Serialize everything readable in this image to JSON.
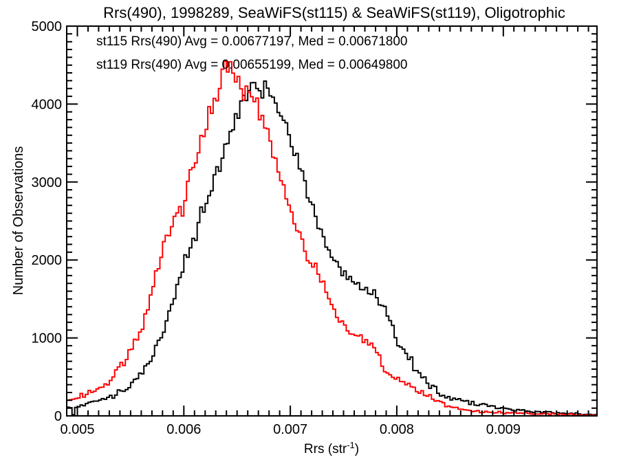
{
  "figure": {
    "background": "#ffffff"
  },
  "chart_data": {
    "type": "line",
    "style": "histogram-steps",
    "title": "Rrs(490), 1998289, SeaWiFS(st115) & SeaWiFS(st119), Oligotrophic",
    "ylabel": "Number of Observations",
    "xlabel": "Rrs (str⁻¹)",
    "xlabel_parts": {
      "main": "Rrs (str",
      "sup": "-1",
      "close": ")"
    },
    "xlim": [
      0.0049,
      0.00988
    ],
    "ylim": [
      0,
      5000
    ],
    "x_ticks_major": [
      0.005,
      0.006,
      0.007,
      0.008,
      0.009
    ],
    "x_tick_labels": [
      "0.005",
      "0.006",
      "0.007",
      "0.008",
      "0.009"
    ],
    "x_minor_step": 0.0001,
    "y_ticks_major": [
      0,
      1000,
      2000,
      3000,
      4000,
      5000
    ],
    "y_tick_labels": [
      "0",
      "1000",
      "2000",
      "3000",
      "4000",
      "5000"
    ],
    "y_minor_step": 100,
    "grid": false,
    "legend_position": "top-left-inside",
    "x_start": 0.0049,
    "x_step": 0.0001,
    "series": [
      {
        "name": "st115",
        "color": "#000000",
        "legend": "st115 Rrs(490) Avg = 0.00677197, Med = 0.00671800",
        "avg": 0.00677197,
        "med": 0.006718,
        "values": [
          100,
          125,
          155,
          200,
          245,
          310,
          400,
          530,
          760,
          1050,
          1500,
          1950,
          2300,
          2700,
          3100,
          3500,
          3900,
          4150,
          4250,
          4150,
          3900,
          3550,
          3100,
          2700,
          2300,
          2050,
          1850,
          1700,
          1620,
          1550,
          1300,
          1000,
          780,
          580,
          420,
          300,
          230,
          190,
          180,
          155,
          120,
          85,
          72,
          62,
          52,
          45,
          38,
          33,
          27,
          22,
          18
        ],
        "fine_structure": [
          {
            "x": 0.00496,
            "value": 15
          }
        ]
      },
      {
        "name": "st119",
        "color": "#ff0000",
        "legend": "st119 Rrs(490) Avg = 0.00655199, Med = 0.00649800",
        "avg": 0.00655199,
        "med": 0.006498,
        "values": [
          190,
          230,
          285,
          350,
          440,
          620,
          830,
          1150,
          1600,
          2100,
          2450,
          2800,
          3250,
          3650,
          4100,
          4400,
          4300,
          4200,
          4000,
          3600,
          3150,
          2650,
          2250,
          1950,
          1650,
          1400,
          1180,
          1050,
          980,
          800,
          560,
          470,
          410,
          330,
          240,
          170,
          125,
          90,
          68,
          58,
          50,
          44,
          38,
          32,
          27,
          24,
          20,
          17,
          13,
          10,
          8
        ],
        "fine_structure": [
          {
            "x": 0.00639,
            "value": 4550
          }
        ]
      }
    ]
  }
}
